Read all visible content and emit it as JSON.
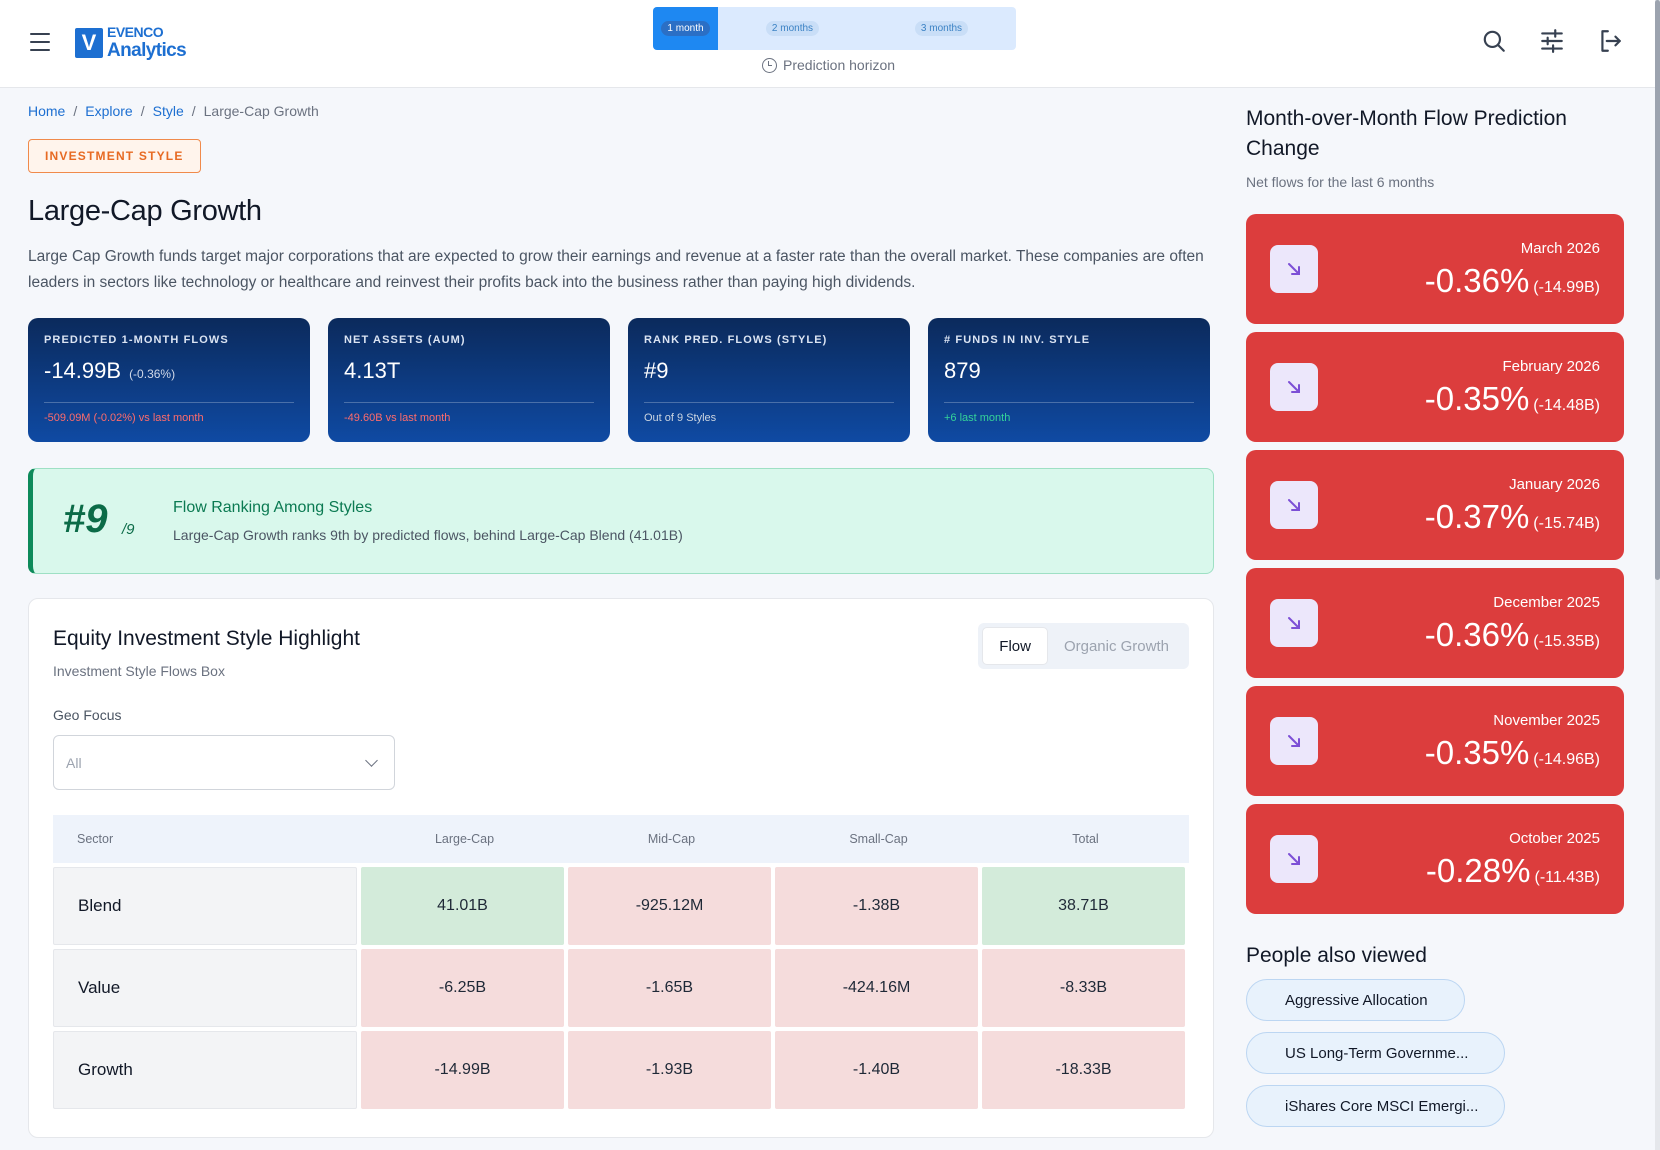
{
  "header": {
    "logo_mark": "V",
    "logo_line1": "EVENCO",
    "logo_line2": "Analytics",
    "horizon_options": [
      "1 month",
      "2 months",
      "3 months"
    ],
    "horizon_label": "Prediction horizon"
  },
  "breadcrumb": [
    "Home",
    "Explore",
    "Style",
    "Large-Cap Growth"
  ],
  "tag": "INVESTMENT STYLE",
  "title": "Large-Cap Growth",
  "description": "Large Cap Growth funds target major corporations that are expected to grow their earnings and revenue at a faster rate than the overall market. These companies are often leaders in sectors like technology or healthcare and reinvest their profits back into the business rather than paying high dividends.",
  "kpis": [
    {
      "label": "PREDICTED 1-MONTH FLOWS",
      "value": "-14.99B",
      "sub": "(-0.36%)",
      "foot": "-509.09M (-0.02%) vs last month"
    },
    {
      "label": "NET ASSETS (AUM)",
      "value": "4.13T",
      "sub": "",
      "foot": "-49.60B vs last month"
    },
    {
      "label": "RANK PRED. FLOWS (STYLE)",
      "value": "#9",
      "sub": "",
      "foot": "Out of 9 Styles"
    },
    {
      "label": "# FUNDS IN INV. STYLE",
      "value": "879",
      "sub": "",
      "foot": "+6 last month"
    }
  ],
  "ranking": {
    "rank": "#9",
    "of": "/9",
    "title": "Flow Ranking Among Styles",
    "subtitle": "Large-Cap Growth ranks 9th by predicted flows, behind Large-Cap Blend (41.01B)"
  },
  "highlight": {
    "title": "Equity Investment Style Highlight",
    "subtitle": "Investment Style Flows Box",
    "toggle": [
      "Flow",
      "Organic Growth"
    ],
    "geo_label": "Geo Focus",
    "geo_value": "All",
    "columns": [
      "Sector",
      "Large-Cap",
      "Mid-Cap",
      "Small-Cap",
      "Total"
    ],
    "rows": [
      {
        "name": "Blend",
        "cells": [
          "41.01B",
          "-925.12M",
          "-1.38B",
          "38.71B"
        ]
      },
      {
        "name": "Value",
        "cells": [
          "-6.25B",
          "-1.65B",
          "-424.16M",
          "-8.33B"
        ]
      },
      {
        "name": "Growth",
        "cells": [
          "-14.99B",
          "-1.93B",
          "-1.40B",
          "-18.33B"
        ]
      }
    ]
  },
  "mom": {
    "title": "Month-over-Month Flow Prediction Change",
    "subtitle": "Net flows for the last 6 months",
    "cards": [
      {
        "month": "March 2026",
        "pct": "-0.36%",
        "amt": "(-14.99B)"
      },
      {
        "month": "February 2026",
        "pct": "-0.35%",
        "amt": "(-14.48B)"
      },
      {
        "month": "January 2026",
        "pct": "-0.37%",
        "amt": "(-15.74B)"
      },
      {
        "month": "December 2025",
        "pct": "-0.36%",
        "amt": "(-15.35B)"
      },
      {
        "month": "November 2025",
        "pct": "-0.35%",
        "amt": "(-14.96B)"
      },
      {
        "month": "October 2025",
        "pct": "-0.28%",
        "amt": "(-11.43B)"
      }
    ]
  },
  "people_also_viewed": {
    "title": "People also viewed",
    "items": [
      "Aggressive Allocation",
      "US Long-Term Governme...",
      "iShares Core MSCI Emergi..."
    ]
  },
  "colors": {
    "accent": "#1d6fd1",
    "negative": "#dc3d3d",
    "positive_cell": "#d3ebda",
    "negative_cell": "#f5dcdc",
    "kpi_bg": "#0b2a5c"
  },
  "icons": {
    "menu": "hamburger-icon",
    "search": "search-icon",
    "filters": "sliders-icon",
    "logout": "logout-icon",
    "clock": "clock-icon",
    "trend": "arrow-down-right-icon"
  }
}
